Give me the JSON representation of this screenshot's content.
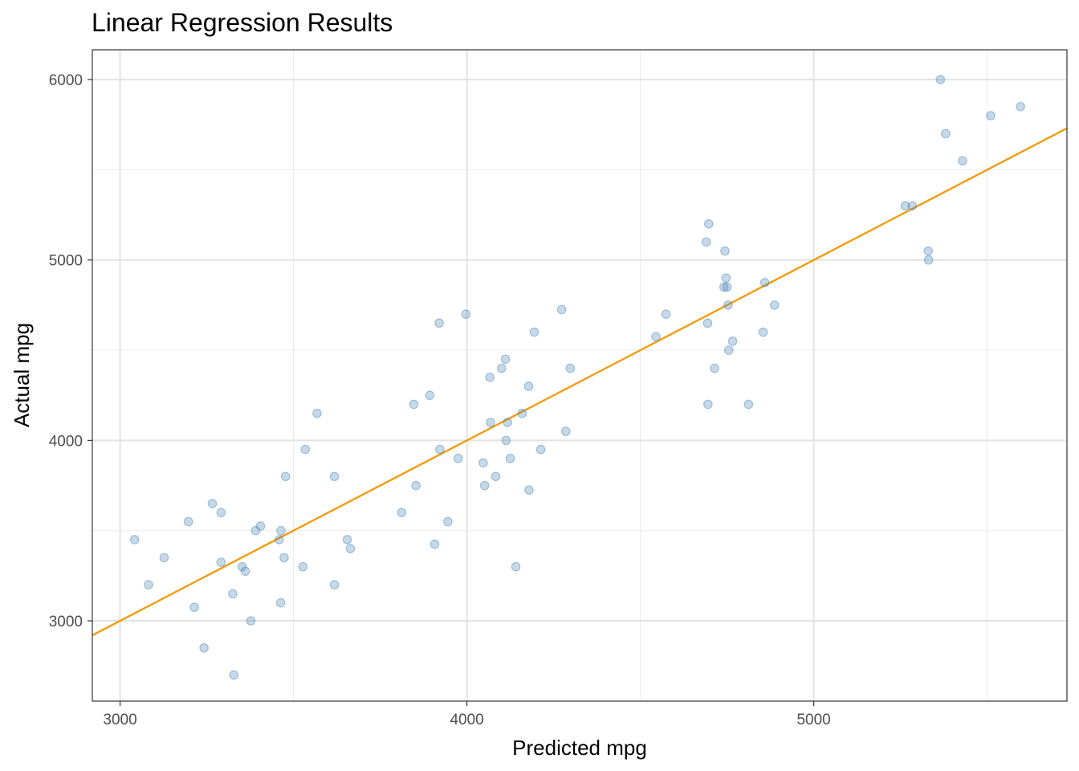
{
  "chart_data": {
    "type": "scatter",
    "title": "Linear Regression Results",
    "xlabel": "Predicted mpg",
    "ylabel": "Actual mpg",
    "xlim": [
      2920,
      5730
    ],
    "ylim": [
      2555,
      6165
    ],
    "x_ticks": [
      3000,
      4000,
      5000
    ],
    "y_ticks": [
      3000,
      4000,
      5000,
      6000
    ],
    "x_tick_labels": [
      "3000",
      "4000",
      "5000"
    ],
    "y_tick_labels": [
      "3000",
      "4000",
      "5000",
      "6000"
    ],
    "grid": true,
    "point_color": "#4682b4",
    "line_color": "#f39c12",
    "fit_line": {
      "intercept": 0,
      "slope": 1
    },
    "points": [
      [
        3042,
        3450
      ],
      [
        3082,
        3200
      ],
      [
        3127,
        3350
      ],
      [
        3197,
        3550
      ],
      [
        3214,
        3075
      ],
      [
        3242,
        2850
      ],
      [
        3266,
        3650
      ],
      [
        3291,
        3325
      ],
      [
        3291,
        3600
      ],
      [
        3325,
        3150
      ],
      [
        3328,
        2700
      ],
      [
        3352,
        3300
      ],
      [
        3361,
        3275
      ],
      [
        3377,
        3000
      ],
      [
        3391,
        3500
      ],
      [
        3405,
        3525
      ],
      [
        3459,
        3450
      ],
      [
        3463,
        3100
      ],
      [
        3464,
        3500
      ],
      [
        3473,
        3350
      ],
      [
        3477,
        3800
      ],
      [
        3527,
        3300
      ],
      [
        3534,
        3950
      ],
      [
        3568,
        4150
      ],
      [
        3618,
        3800
      ],
      [
        3618,
        3200
      ],
      [
        3655,
        3450
      ],
      [
        3664,
        3400
      ],
      [
        3812,
        3600
      ],
      [
        3847,
        4200
      ],
      [
        3853,
        3750
      ],
      [
        3893,
        4250
      ],
      [
        3907,
        3425
      ],
      [
        3920,
        4650
      ],
      [
        3922,
        3950
      ],
      [
        3945,
        3550
      ],
      [
        3975,
        3900
      ],
      [
        3997,
        4700
      ],
      [
        4047,
        3875
      ],
      [
        4051,
        3750
      ],
      [
        4066,
        4350
      ],
      [
        4068,
        4100
      ],
      [
        4083,
        3800
      ],
      [
        4100,
        4400
      ],
      [
        4111,
        4450
      ],
      [
        4113,
        4000
      ],
      [
        4117,
        4100
      ],
      [
        4125,
        3900
      ],
      [
        4141,
        3300
      ],
      [
        4159,
        4150
      ],
      [
        4178,
        4300
      ],
      [
        4179,
        3725
      ],
      [
        4194,
        4600
      ],
      [
        4213,
        3950
      ],
      [
        4273,
        4725
      ],
      [
        4285,
        4050
      ],
      [
        4298,
        4400
      ],
      [
        4545,
        4575
      ],
      [
        4574,
        4700
      ],
      [
        4690,
        5100
      ],
      [
        4694,
        4650
      ],
      [
        4695,
        4200
      ],
      [
        4697,
        5200
      ],
      [
        4714,
        4400
      ],
      [
        4741,
        4850
      ],
      [
        4744,
        5050
      ],
      [
        4747,
        4900
      ],
      [
        4750,
        4850
      ],
      [
        4753,
        4750
      ],
      [
        4755,
        4500
      ],
      [
        4766,
        4550
      ],
      [
        4812,
        4200
      ],
      [
        4854,
        4600
      ],
      [
        4859,
        4875
      ],
      [
        4887,
        4750
      ],
      [
        5264,
        5300
      ],
      [
        5284,
        5300
      ],
      [
        5330,
        5050
      ],
      [
        5331,
        5000
      ],
      [
        5365,
        6000
      ],
      [
        5380,
        5700
      ],
      [
        5429,
        5550
      ],
      [
        5510,
        5800
      ],
      [
        5596,
        5850
      ]
    ]
  }
}
